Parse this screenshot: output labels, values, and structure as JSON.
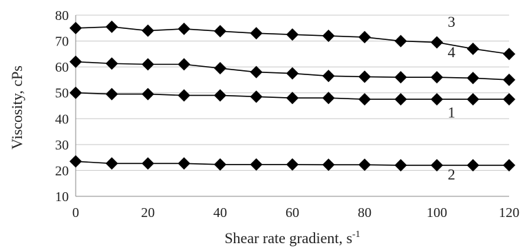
{
  "chart_data": {
    "type": "line",
    "xlabel": "Shear rate gradient, s",
    "xlabel_superscript": "-1",
    "ylabel": "Viscosity, cPs",
    "xlim": [
      0,
      120
    ],
    "ylim": [
      10,
      80
    ],
    "x_ticks": [
      "0",
      "20",
      "40",
      "60",
      "80",
      "100",
      "120"
    ],
    "y_ticks": [
      "10",
      "20",
      "30",
      "40",
      "50",
      "60",
      "70",
      "80"
    ],
    "grid": "horizontal",
    "legend": "none",
    "marker": "diamond",
    "x": [
      0,
      10,
      20,
      30,
      40,
      50,
      60,
      70,
      80,
      90,
      100,
      110,
      120
    ],
    "series": [
      {
        "label": "3",
        "values": [
          75,
          75.5,
          74,
          74.7,
          73.8,
          73,
          72.5,
          72,
          71.5,
          70,
          69.5,
          67,
          65
        ]
      },
      {
        "label": "4",
        "values": [
          62,
          61.3,
          61,
          61,
          59.5,
          58,
          57.5,
          56.5,
          56.2,
          56,
          56,
          55.7,
          55
        ]
      },
      {
        "label": "1",
        "values": [
          50,
          49.5,
          49.5,
          49,
          49,
          48.5,
          48,
          48,
          47.5,
          47.5,
          47.5,
          47.5,
          47.5
        ]
      },
      {
        "label": "2",
        "values": [
          23.5,
          22.7,
          22.7,
          22.7,
          22.3,
          22.3,
          22.3,
          22.2,
          22.2,
          22,
          22,
          22,
          22
        ]
      }
    ],
    "series_label_positions": [
      {
        "label": "3",
        "x": 103,
        "y": 75.5
      },
      {
        "label": "4",
        "x": 103,
        "y": 63.8
      },
      {
        "label": "1",
        "x": 103,
        "y": 40.5
      },
      {
        "label": "2",
        "x": 103,
        "y": 16.5
      }
    ],
    "colors": {
      "line": "#000000",
      "grid": "#c8c8c8",
      "axis": "#888888",
      "text": "#222222"
    }
  }
}
